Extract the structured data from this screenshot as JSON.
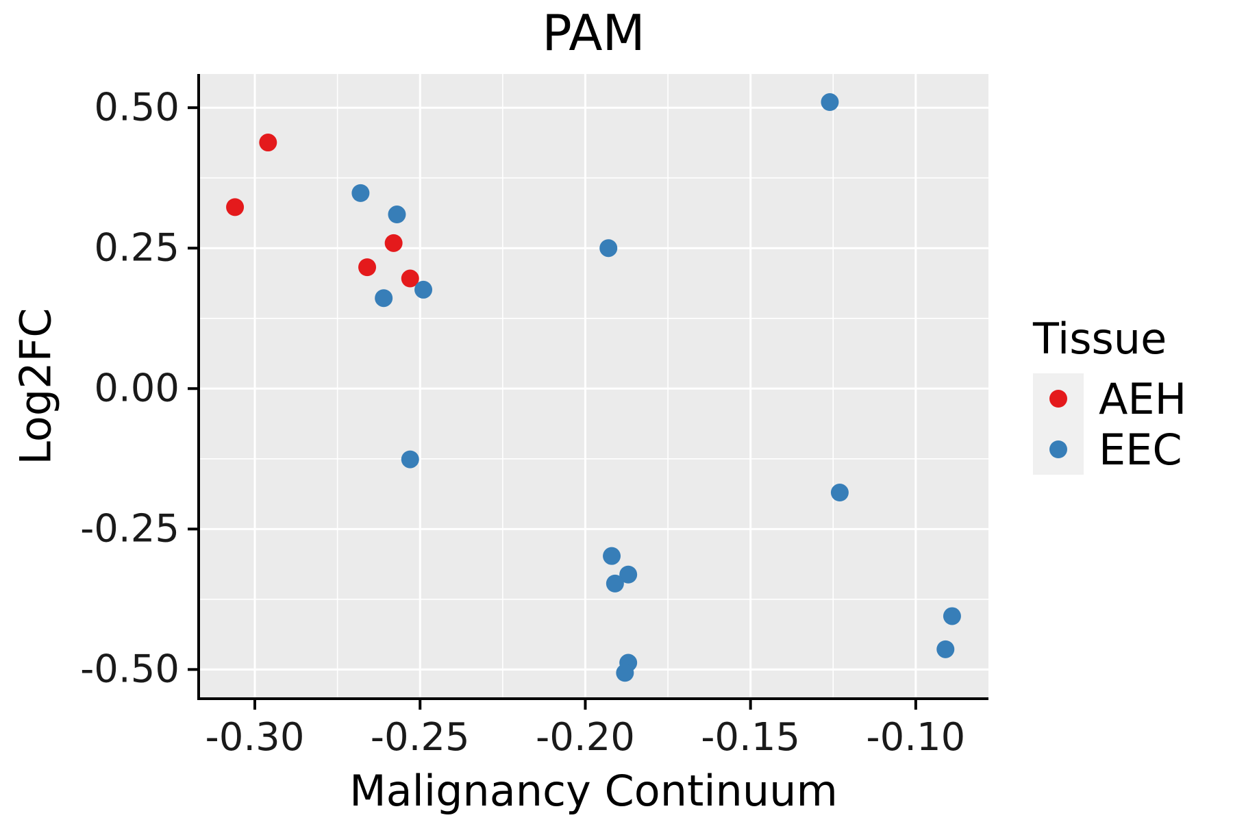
{
  "title": "PAM",
  "axes": {
    "x": {
      "label": "Malignancy Continuum",
      "ticks": [
        -0.3,
        -0.25,
        -0.2,
        -0.15,
        -0.1
      ],
      "tick_labels": [
        "-0.30",
        "-0.25",
        "-0.20",
        "-0.15",
        "-0.10"
      ],
      "minor_ticks": [
        -0.275,
        -0.225,
        -0.175,
        -0.125
      ]
    },
    "y": {
      "label": "Log2FC",
      "ticks": [
        0.5,
        0.25,
        0.0,
        -0.25,
        -0.5
      ],
      "tick_labels": [
        "0.50",
        "0.25",
        "0.00",
        "-0.25",
        "-0.50"
      ],
      "minor_ticks": [
        0.375,
        0.125,
        -0.125,
        -0.375
      ]
    }
  },
  "legend": {
    "title": "Tissue",
    "entries": [
      {
        "label": "AEH",
        "color": "#E41A1C"
      },
      {
        "label": "EEC",
        "color": "#377EB8"
      }
    ]
  },
  "colors": {
    "panel_bg": "#EBEBEB",
    "grid_major": "#FFFFFF",
    "grid_minor": "#FFFFFF",
    "axis_line": "#000000",
    "legend_key_bg": "#F0F0F0",
    "aeh": "#E41A1C",
    "eec": "#377EB8"
  },
  "chart_data": {
    "type": "scatter",
    "title": "PAM",
    "xlabel": "Malignancy Continuum",
    "ylabel": "Log2FC",
    "xlim": [
      -0.317,
      -0.078
    ],
    "ylim": [
      -0.552,
      0.56
    ],
    "grid": true,
    "legend_position": "right",
    "series": [
      {
        "name": "AEH",
        "color": "#E41A1C",
        "points": [
          [
            -0.306,
            0.323
          ],
          [
            -0.296,
            0.438
          ],
          [
            -0.266,
            0.216
          ],
          [
            -0.258,
            0.259
          ],
          [
            -0.253,
            0.196
          ]
        ]
      },
      {
        "name": "EEC",
        "color": "#377EB8",
        "points": [
          [
            -0.268,
            0.348
          ],
          [
            -0.257,
            0.31
          ],
          [
            -0.261,
            0.161
          ],
          [
            -0.249,
            0.176
          ],
          [
            -0.193,
            0.25
          ],
          [
            -0.126,
            0.51
          ],
          [
            -0.253,
            -0.126
          ],
          [
            -0.123,
            -0.185
          ],
          [
            -0.192,
            -0.298
          ],
          [
            -0.187,
            -0.331
          ],
          [
            -0.191,
            -0.347
          ],
          [
            -0.187,
            -0.488
          ],
          [
            -0.188,
            -0.506
          ],
          [
            -0.089,
            -0.405
          ],
          [
            -0.091,
            -0.464
          ]
        ]
      }
    ]
  }
}
